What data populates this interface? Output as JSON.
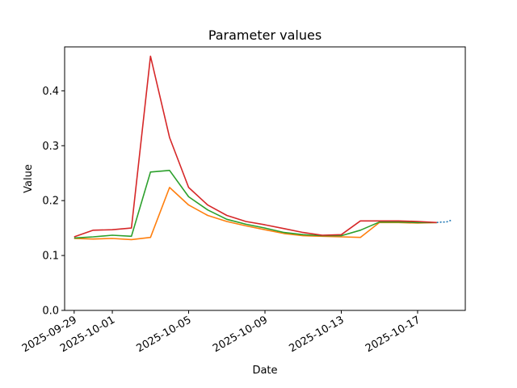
{
  "chart_data": {
    "type": "line",
    "title": "Parameter values",
    "xlabel": "Date",
    "ylabel": "Value",
    "x_ticks": [
      "2025-09-29",
      "2025-10-01",
      "2025-10-05",
      "2025-10-09",
      "2025-10-13",
      "2025-10-17"
    ],
    "y_ticks": [
      "0.0",
      "0.1",
      "0.2",
      "0.3",
      "0.4"
    ],
    "xlim": [
      "2025-09-28 12:00",
      "2025-10-19 12:00"
    ],
    "ylim": [
      0,
      0.48
    ],
    "grid": false,
    "series": [
      {
        "color": "#1f77b4",
        "style": "dotted",
        "x": [
          "2025-10-18 00:00",
          "2025-10-18 06:00",
          "2025-10-18 12:00",
          "2025-10-18 18:00"
        ],
        "values": [
          0.16,
          0.161,
          0.161,
          0.164
        ]
      },
      {
        "color": "#ff7f0e",
        "x": [
          "2025-09-29",
          "2025-09-30",
          "2025-10-01",
          "2025-10-02",
          "2025-10-03",
          "2025-10-04",
          "2025-10-05",
          "2025-10-06",
          "2025-10-07",
          "2025-10-08",
          "2025-10-09",
          "2025-10-10",
          "2025-10-11",
          "2025-10-12",
          "2025-10-13",
          "2025-10-14",
          "2025-10-15",
          "2025-10-16",
          "2025-10-17",
          "2025-10-18"
        ],
        "values": [
          0.131,
          0.13,
          0.131,
          0.129,
          0.133,
          0.224,
          0.192,
          0.173,
          0.162,
          0.154,
          0.147,
          0.14,
          0.136,
          0.135,
          0.134,
          0.133,
          0.16,
          0.16,
          0.159,
          0.16
        ]
      },
      {
        "color": "#2ca02c",
        "x": [
          "2025-09-29",
          "2025-09-30",
          "2025-10-01",
          "2025-10-02",
          "2025-10-03",
          "2025-10-04",
          "2025-10-05",
          "2025-10-06",
          "2025-10-07",
          "2025-10-08",
          "2025-10-09",
          "2025-10-10",
          "2025-10-11",
          "2025-10-12",
          "2025-10-13",
          "2025-10-14",
          "2025-10-15",
          "2025-10-16",
          "2025-10-17",
          "2025-10-18"
        ],
        "values": [
          0.132,
          0.134,
          0.137,
          0.135,
          0.252,
          0.255,
          0.207,
          0.183,
          0.166,
          0.157,
          0.15,
          0.142,
          0.138,
          0.136,
          0.136,
          0.146,
          0.161,
          0.161,
          0.16,
          0.16
        ]
      },
      {
        "color": "#d62728",
        "x": [
          "2025-09-29",
          "2025-09-30",
          "2025-10-01",
          "2025-10-02",
          "2025-10-03",
          "2025-10-04",
          "2025-10-05",
          "2025-10-06",
          "2025-10-07",
          "2025-10-08",
          "2025-10-09",
          "2025-10-10",
          "2025-10-11",
          "2025-10-12",
          "2025-10-13",
          "2025-10-14",
          "2025-10-15",
          "2025-10-16",
          "2025-10-17",
          "2025-10-18"
        ],
        "values": [
          0.134,
          0.146,
          0.147,
          0.15,
          0.463,
          0.315,
          0.224,
          0.192,
          0.173,
          0.162,
          0.156,
          0.149,
          0.142,
          0.137,
          0.138,
          0.163,
          0.163,
          0.163,
          0.162,
          0.16
        ]
      }
    ]
  }
}
